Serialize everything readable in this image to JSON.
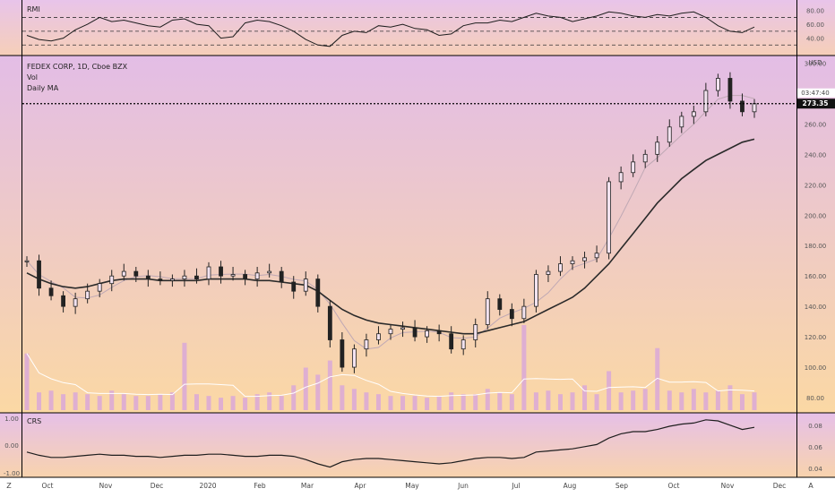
{
  "colors": {
    "bg_top": "#e3bde6",
    "bg_bottom": "#fbd8a4",
    "candle": "#222222",
    "ma_long": "#2a2a2a",
    "ma_short": "#bfa8b4",
    "volume": "#d9a8d8",
    "volume_ma": "#ffffff",
    "line": "#1e1e1e",
    "border": "#000000"
  },
  "main": {
    "title": "FEDEX CORP, 1D, Cboe BZX",
    "vol_label": "Vol",
    "ma_label": "Daily MA",
    "currency": "USD",
    "price_tag": "273.35",
    "countdown_tag": "03:47:40"
  },
  "rmi": {
    "label": "RMI"
  },
  "crs": {
    "label": "CRS"
  },
  "footer": {
    "left_letter": "Z",
    "right_letter": "A"
  },
  "chart_data": [
    {
      "type": "candlestick",
      "panel": "main",
      "title": "FEDEX CORP, 1D, Cboe BZX",
      "y_unit": "USD",
      "ylim": [
        70,
        305
      ],
      "y_ticks": [
        80,
        100,
        120,
        140,
        160,
        180,
        200,
        220,
        240,
        260,
        280,
        300
      ],
      "x_ticks": [
        "Oct",
        "Nov",
        "Dec",
        "2020",
        "Feb",
        "Mar",
        "Apr",
        "May",
        "Jun",
        "Jul",
        "Aug",
        "Sep",
        "Oct",
        "Nov",
        "Dec"
      ],
      "last_price": 273.35,
      "price_series": {
        "name": "FDX",
        "dates": [
          "2019-09-19",
          "2019-09-26",
          "2019-10-03",
          "2019-10-10",
          "2019-10-17",
          "2019-10-24",
          "2019-10-31",
          "2019-11-07",
          "2019-11-14",
          "2019-11-21",
          "2019-11-28",
          "2019-12-05",
          "2019-12-12",
          "2019-12-19",
          "2019-12-26",
          "2020-01-02",
          "2020-01-09",
          "2020-01-16",
          "2020-01-23",
          "2020-01-30",
          "2020-02-06",
          "2020-02-13",
          "2020-02-20",
          "2020-02-27",
          "2020-03-05",
          "2020-03-12",
          "2020-03-19",
          "2020-03-26",
          "2020-04-02",
          "2020-04-09",
          "2020-04-16",
          "2020-04-23",
          "2020-04-30",
          "2020-05-07",
          "2020-05-14",
          "2020-05-21",
          "2020-05-28",
          "2020-06-04",
          "2020-06-11",
          "2020-06-18",
          "2020-06-25",
          "2020-07-02",
          "2020-07-09",
          "2020-07-16",
          "2020-07-23",
          "2020-07-30",
          "2020-08-06",
          "2020-08-13",
          "2020-08-20",
          "2020-08-27",
          "2020-09-03",
          "2020-09-10",
          "2020-09-17",
          "2020-09-24",
          "2020-10-01",
          "2020-10-08",
          "2020-10-15",
          "2020-10-22",
          "2020-10-29",
          "2020-11-05",
          "2020-11-12"
        ],
        "close": [
          170,
          152,
          147,
          140,
          145,
          150,
          155,
          160,
          163,
          160,
          158,
          157,
          158,
          160,
          158,
          166,
          160,
          161,
          158,
          162,
          163,
          156,
          150,
          158,
          140,
          118,
          100,
          112,
          118,
          122,
          125,
          126,
          120,
          124,
          122,
          112,
          118,
          128,
          145,
          138,
          132,
          140,
          161,
          163,
          168,
          170,
          172,
          175,
          222,
          228,
          235,
          240,
          248,
          258,
          265,
          268,
          282,
          290,
          275,
          268,
          273.35
        ]
      },
      "ma_long": {
        "name": "Daily MA",
        "values": [
          162,
          158,
          155,
          153,
          152,
          153,
          155,
          157,
          158,
          158,
          158,
          157,
          157,
          157,
          157,
          158,
          158,
          158,
          158,
          157,
          157,
          156,
          155,
          154,
          150,
          144,
          138,
          134,
          131,
          129,
          128,
          127,
          126,
          125,
          124,
          123,
          122,
          122,
          124,
          126,
          128,
          130,
          134,
          138,
          142,
          146,
          152,
          160,
          168,
          178,
          188,
          198,
          208,
          216,
          224,
          230,
          236,
          240,
          244,
          248,
          250
        ]
      }
    },
    {
      "type": "bar",
      "panel": "main",
      "name": "Vol",
      "values": [
        3.2,
        1.0,
        1.1,
        0.9,
        1.0,
        0.9,
        0.8,
        1.1,
        0.9,
        0.8,
        0.8,
        0.9,
        1.0,
        3.8,
        0.9,
        0.8,
        0.7,
        0.8,
        0.7,
        0.9,
        1.0,
        0.8,
        1.4,
        2.4,
        2.0,
        2.8,
        1.4,
        1.2,
        1.0,
        0.9,
        0.8,
        0.8,
        0.8,
        0.7,
        0.8,
        1.0,
        0.9,
        0.9,
        1.2,
        1.0,
        0.9,
        4.8,
        1.0,
        1.1,
        0.9,
        1.0,
        1.4,
        0.9,
        2.2,
        1.0,
        1.1,
        1.2,
        3.5,
        1.1,
        1.0,
        1.2,
        1.0,
        1.1,
        1.4,
        0.9,
        1.0
      ]
    },
    {
      "type": "line",
      "panel": "rmi",
      "name": "RMI",
      "y_ticks": [
        40,
        60,
        80
      ],
      "ylim": [
        20,
        90
      ],
      "levels": [
        30,
        50,
        70
      ],
      "values": [
        44,
        38,
        36,
        40,
        52,
        60,
        70,
        64,
        66,
        62,
        58,
        56,
        66,
        68,
        60,
        58,
        40,
        42,
        62,
        66,
        64,
        58,
        50,
        38,
        30,
        28,
        44,
        50,
        48,
        58,
        56,
        60,
        54,
        52,
        44,
        46,
        58,
        62,
        62,
        66,
        64,
        70,
        76,
        72,
        70,
        64,
        68,
        72,
        78,
        76,
        72,
        70,
        74,
        72,
        76,
        78,
        70,
        58,
        50,
        48,
        56
      ]
    },
    {
      "type": "line",
      "panel": "crs",
      "name": "CRS",
      "left_axis": {
        "ticks": [
          1.0,
          0.0,
          -1.0
        ],
        "labels": [
          "1.00",
          "0.00",
          "-1.00"
        ]
      },
      "right_axis": {
        "ticks": [
          0.04,
          0.06,
          0.08
        ],
        "labels": [
          "0.04",
          "0.06",
          "0.08"
        ]
      },
      "ylim": [
        0.034,
        0.089
      ],
      "values": [
        0.055,
        0.052,
        0.05,
        0.05,
        0.051,
        0.052,
        0.053,
        0.052,
        0.052,
        0.051,
        0.051,
        0.05,
        0.051,
        0.052,
        0.052,
        0.053,
        0.053,
        0.052,
        0.051,
        0.051,
        0.052,
        0.052,
        0.051,
        0.048,
        0.044,
        0.041,
        0.046,
        0.048,
        0.049,
        0.049,
        0.048,
        0.047,
        0.046,
        0.045,
        0.044,
        0.045,
        0.047,
        0.049,
        0.05,
        0.05,
        0.049,
        0.05,
        0.055,
        0.056,
        0.057,
        0.058,
        0.06,
        0.062,
        0.068,
        0.072,
        0.074,
        0.074,
        0.076,
        0.079,
        0.081,
        0.082,
        0.085,
        0.084,
        0.08,
        0.076,
        0.078
      ]
    }
  ]
}
